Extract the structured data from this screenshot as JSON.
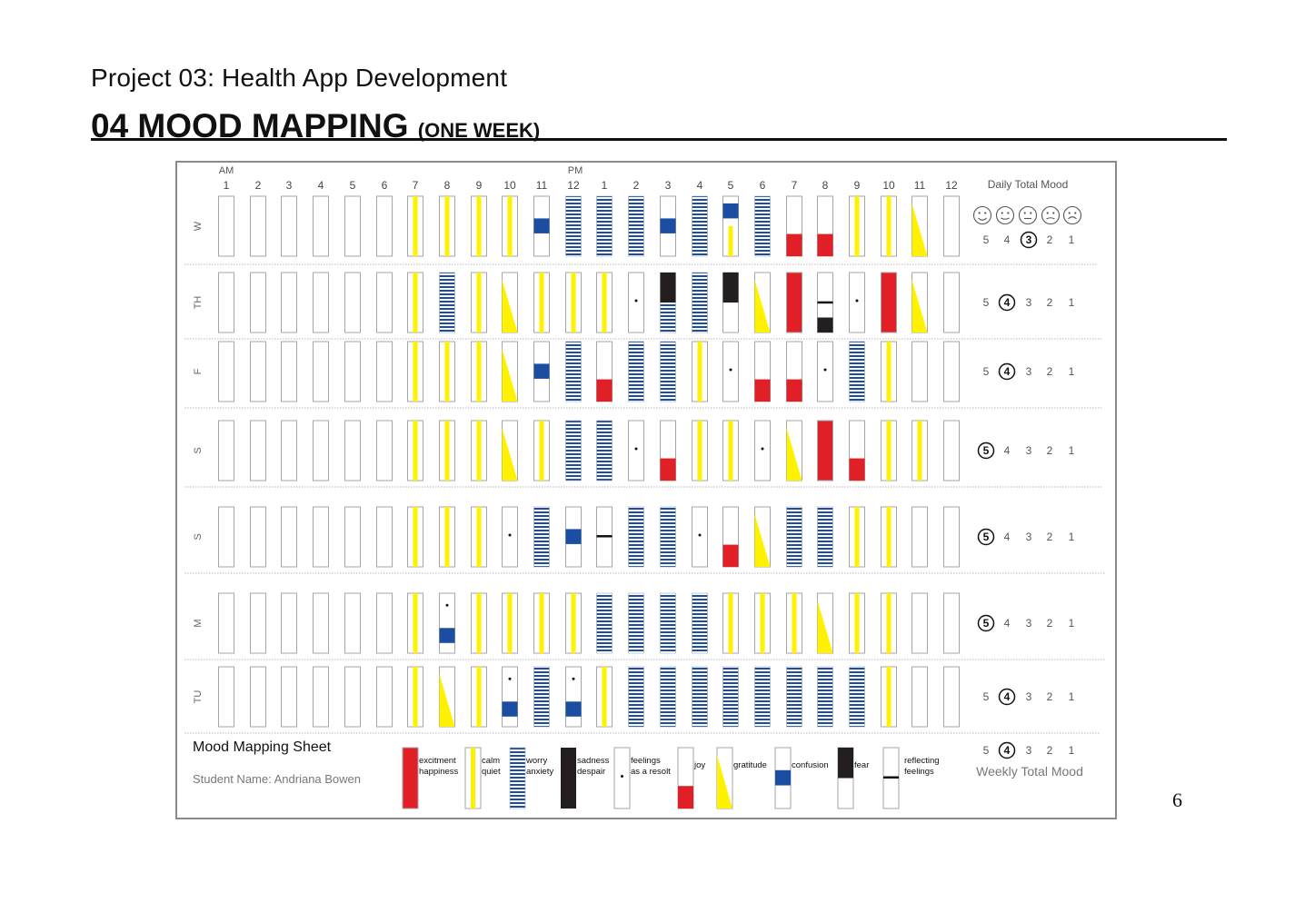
{
  "project_title": "Project 03: Health App Development",
  "section_title": "04 MOOD MAPPING",
  "section_subtitle": "(ONE WEEK)",
  "page_number": "6",
  "time_header": {
    "am_label": "AM",
    "pm_label": "PM",
    "hours": [
      "1",
      "2",
      "3",
      "4",
      "5",
      "6",
      "7",
      "8",
      "9",
      "10",
      "11",
      "12",
      "1",
      "2",
      "3",
      "4",
      "5",
      "6",
      "7",
      "8",
      "9",
      "10",
      "11",
      "12"
    ]
  },
  "daily_total_label": "Daily Total Mood",
  "faces": [
    "very-happy-face-icon",
    "happy-face-icon",
    "neutral-face-icon",
    "sad-face-icon",
    "very-sad-face-icon"
  ],
  "score_options": [
    "5",
    "4",
    "3",
    "2",
    "1"
  ],
  "rows": [
    {
      "day": "W",
      "score": "3",
      "cells": [
        "E",
        "E",
        "E",
        "E",
        "E",
        "E",
        "C",
        "C",
        "C",
        "C",
        "CO",
        "W",
        "W",
        "W",
        "CO",
        "W",
        "CO2",
        "W",
        "J",
        "J",
        "C",
        "C",
        "G",
        "E"
      ]
    },
    {
      "day": "TH",
      "score": "4",
      "cells": [
        "E",
        "E",
        "E",
        "E",
        "E",
        "E",
        "C",
        "W",
        "C",
        "G",
        "C",
        "C",
        "C",
        "R",
        "FW",
        "W",
        "F",
        "G",
        "X",
        "FR",
        "R",
        "X",
        "G",
        "E"
      ]
    },
    {
      "day": "F",
      "score": "4",
      "cells": [
        "E",
        "E",
        "E",
        "E",
        "E",
        "E",
        "C",
        "C",
        "C",
        "G",
        "CO",
        "W",
        "J",
        "W",
        "W",
        "C",
        "R",
        "J",
        "J",
        "R",
        "W",
        "C",
        "E",
        "E"
      ]
    },
    {
      "day": "S",
      "score": "5",
      "cells": [
        "E",
        "E",
        "E",
        "E",
        "E",
        "E",
        "C",
        "C",
        "C",
        "G",
        "C",
        "W",
        "W",
        "R",
        "J",
        "C",
        "C",
        "R",
        "G",
        "X",
        "J",
        "C",
        "C",
        "E"
      ]
    },
    {
      "day": "S",
      "score": "5",
      "cells": [
        "E",
        "E",
        "E",
        "E",
        "E",
        "E",
        "C",
        "C",
        "C",
        "R",
        "W",
        "CO",
        "RF",
        "W",
        "W",
        "R",
        "J",
        "G",
        "W",
        "W",
        "C",
        "C",
        "E",
        "E"
      ]
    },
    {
      "day": "M",
      "score": "5",
      "cells": [
        "E",
        "E",
        "E",
        "E",
        "E",
        "E",
        "C",
        "RCO",
        "C",
        "C",
        "C",
        "C",
        "W",
        "W",
        "W",
        "W",
        "C",
        "C",
        "C",
        "G",
        "C",
        "C",
        "E",
        "E"
      ]
    },
    {
      "day": "TU",
      "score": "4",
      "cells": [
        "E",
        "E",
        "E",
        "E",
        "E",
        "E",
        "C",
        "G",
        "C",
        "RCO",
        "W",
        "RCO",
        "C",
        "W",
        "W",
        "W",
        "W",
        "W",
        "W",
        "W",
        "W",
        "C",
        "E",
        "E"
      ]
    }
  ],
  "weekly_score": "4",
  "weekly_total_label": "Weekly Total Mood",
  "sheet_title": "Mood Mapping Sheet",
  "student_name": "Student Name: Andriana Bowen",
  "legend": [
    {
      "type": "X",
      "lines": [
        "excitment",
        "happiness"
      ]
    },
    {
      "type": "C",
      "lines": [
        "calm",
        "quiet"
      ]
    },
    {
      "type": "W",
      "lines": [
        "worry",
        "anxiety"
      ]
    },
    {
      "type": "S",
      "lines": [
        "sadness",
        "despair"
      ]
    },
    {
      "type": "R",
      "lines": [
        "feelings",
        "as a resolt"
      ]
    },
    {
      "type": "J",
      "lines": [
        "joy"
      ]
    },
    {
      "type": "G",
      "lines": [
        "gratitude"
      ]
    },
    {
      "type": "CO",
      "lines": [
        "confusion"
      ]
    },
    {
      "type": "F",
      "lines": [
        "fear"
      ]
    },
    {
      "type": "RF",
      "lines": [
        "reflecting",
        "feelings"
      ]
    }
  ],
  "colors": {
    "red": "#e11f26",
    "yellow": "#fff200",
    "blue": "#1b4ea3",
    "black": "#231f20",
    "gray": "#a5a5a5"
  }
}
